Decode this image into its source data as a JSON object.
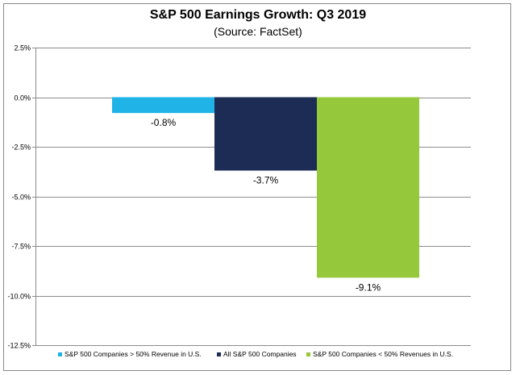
{
  "chart_data": {
    "type": "bar",
    "title": "S&P 500 Earnings Growth:  Q3 2019",
    "subtitle": "(Source: FactSet)",
    "xlabel": "",
    "ylabel": "",
    "ylim": [
      -12.5,
      2.5
    ],
    "yticks": [
      2.5,
      0.0,
      -2.5,
      -5.0,
      -7.5,
      -10.0,
      -12.5
    ],
    "ytick_labels": [
      "2.5%",
      "0.0%",
      "-2.5%",
      "-5.0%",
      "-7.5%",
      "-10.0%",
      "-12.5%"
    ],
    "grid": true,
    "legend_position": "bottom",
    "series": [
      {
        "name": "S&P 500 Companies > 50% Revenue in U.S.",
        "value": -0.8,
        "label": "-0.8%",
        "color": "#1fb3e8"
      },
      {
        "name": "All S&P 500 Companies",
        "value": -3.7,
        "label": "-3.7%",
        "color": "#1c2c55"
      },
      {
        "name": "S&P 500 Companies < 50% Revenues in U.S.",
        "value": -9.1,
        "label": "-9.1%",
        "color": "#96c83b"
      }
    ]
  }
}
